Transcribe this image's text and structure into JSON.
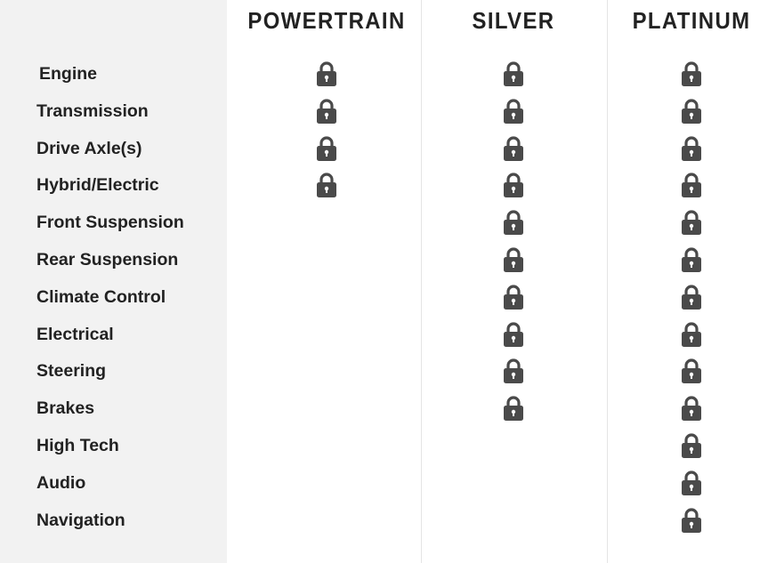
{
  "columns": [
    {
      "label": "POWERTRAIN"
    },
    {
      "label": "SILVER"
    },
    {
      "label": "PLATINUM"
    }
  ],
  "features": [
    {
      "label": "Engine",
      "covered": [
        true,
        true,
        true
      ]
    },
    {
      "label": "Transmission",
      "covered": [
        true,
        true,
        true
      ]
    },
    {
      "label": "Drive Axle(s)",
      "covered": [
        true,
        true,
        true
      ]
    },
    {
      "label": "Hybrid/Electric",
      "covered": [
        true,
        true,
        true
      ]
    },
    {
      "label": "Front Suspension",
      "covered": [
        false,
        true,
        true
      ]
    },
    {
      "label": "Rear Suspension",
      "covered": [
        false,
        true,
        true
      ]
    },
    {
      "label": "Climate Control",
      "covered": [
        false,
        true,
        true
      ]
    },
    {
      "label": "Electrical",
      "covered": [
        false,
        true,
        true
      ]
    },
    {
      "label": "Steering",
      "covered": [
        false,
        true,
        true
      ]
    },
    {
      "label": "Brakes",
      "covered": [
        false,
        true,
        true
      ]
    },
    {
      "label": "High Tech",
      "covered": [
        false,
        false,
        true
      ]
    },
    {
      "label": "Audio",
      "covered": [
        false,
        false,
        true
      ]
    },
    {
      "label": "Navigation",
      "covered": [
        false,
        false,
        true
      ]
    }
  ],
  "icon": "lock-icon",
  "colors": {
    "icon": "#4a4a4a",
    "sidebar": "#f2f2f2",
    "text": "#222222"
  }
}
